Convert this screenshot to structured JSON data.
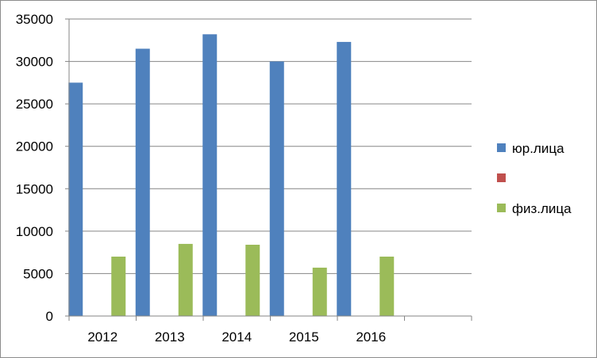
{
  "chart_data": {
    "type": "bar",
    "categories": [
      "2012",
      "2013",
      "2014",
      "2015",
      "2016",
      ""
    ],
    "series": [
      {
        "name": "юр.лица",
        "color": "#4f81bd",
        "values": [
          27500,
          31500,
          33200,
          30000,
          32300,
          null
        ]
      },
      {
        "name": "",
        "color": "#c0504d",
        "values": [
          null,
          null,
          null,
          null,
          null,
          null
        ]
      },
      {
        "name": "физ.лица",
        "color": "#9bbb59",
        "values": [
          7000,
          8500,
          8400,
          5700,
          7000,
          null
        ]
      }
    ],
    "yticks": [
      "0",
      "5000",
      "10000",
      "15000",
      "20000",
      "25000",
      "30000",
      "35000"
    ],
    "ylim": [
      0,
      35000
    ],
    "grid": true,
    "legend": "right"
  }
}
